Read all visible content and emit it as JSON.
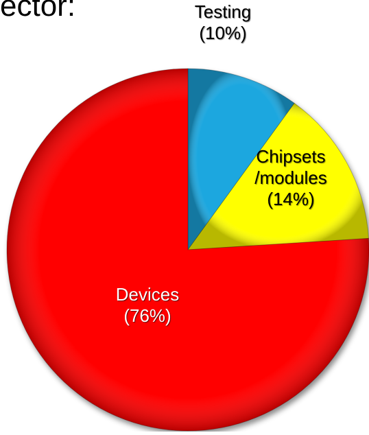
{
  "page": {
    "cutoff_title": "ector:"
  },
  "chart_data": {
    "type": "pie",
    "start_angle_deg": 0,
    "direction": "clockwise",
    "slices": [
      {
        "label_lines": [
          "Testing",
          "(10%)"
        ],
        "name": "Testing",
        "value": 10,
        "color": "#1ea7df",
        "label_style": "on-dark",
        "label_pos": "outside-top"
      },
      {
        "label_lines": [
          "Chipsets",
          "/modules",
          "(14%)"
        ],
        "name": "Chipsets /modules",
        "value": 14,
        "color": "#ffff00",
        "label_style": "normal",
        "label_pos": "inside"
      },
      {
        "label_lines": [
          "Devices",
          "(76%)"
        ],
        "name": "Devices",
        "value": 76,
        "color": "#ff0000",
        "label_style": "on-dark",
        "label_pos": "inside"
      }
    ]
  }
}
